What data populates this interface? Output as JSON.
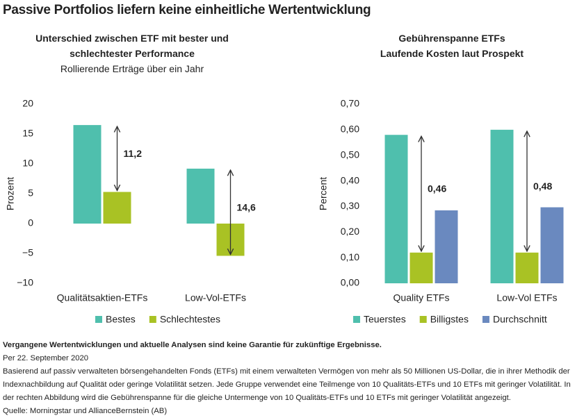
{
  "title": "Passive Portfolios liefern keine einheitliche Wertentwicklung",
  "chart_data": [
    {
      "type": "bar",
      "title": "Unterschied zwischen ETF mit bester und schlechtester Performance",
      "subtitle": "Rollierende Erträge über ein Jahr",
      "ylabel": "Prozent",
      "categories": [
        "Qualitätsaktien-ETFs",
        "Low-Vol-ETFs"
      ],
      "series": [
        {
          "name": "Bestes",
          "color": "#4fbfad",
          "values": [
            16.5,
            9.2
          ]
        },
        {
          "name": "Schlechtestes",
          "color": "#a9c224",
          "values": [
            5.3,
            -5.4
          ]
        }
      ],
      "annotations": [
        {
          "value": 11.2,
          "label": "11,2"
        },
        {
          "value": 14.6,
          "label": "14,6"
        }
      ],
      "ylim": [
        -10,
        20
      ],
      "yticks": [
        {
          "value": -10,
          "label": "−10"
        },
        {
          "value": -5,
          "label": "−5"
        },
        0,
        5,
        10,
        15,
        20
      ],
      "legend": "bottom"
    },
    {
      "type": "bar",
      "title": "Gebührenspanne ETFs",
      "subtitle": "Laufende Kosten laut Prospekt",
      "ylabel": "Percent",
      "categories": [
        "Quality ETFs",
        "Low-Vol ETFs"
      ],
      "series": [
        {
          "name": "Teuerstes",
          "color": "#4fbfad",
          "values": [
            0.58,
            0.6
          ]
        },
        {
          "name": "Billigstes",
          "color": "#a9c224",
          "values": [
            0.12,
            0.12
          ]
        },
        {
          "name": "Durchschnitt",
          "color": "#6a89bf",
          "values": [
            0.285,
            0.297
          ]
        }
      ],
      "annotations": [
        {
          "value": 0.46,
          "label": "0,46"
        },
        {
          "value": 0.48,
          "label": "0,48"
        }
      ],
      "ylim": [
        0,
        0.7
      ],
      "yticks": [
        {
          "value": 0,
          "label": "0,00"
        },
        {
          "value": 0.1,
          "label": "0,10"
        },
        {
          "value": 0.2,
          "label": "0,20"
        },
        {
          "value": 0.3,
          "label": "0,30"
        },
        {
          "value": 0.4,
          "label": "0,40"
        },
        {
          "value": 0.5,
          "label": "0,50"
        },
        {
          "value": 0.6,
          "label": "0,60"
        },
        {
          "value": 0.7,
          "label": "0,70"
        }
      ],
      "legend": "bottom"
    }
  ],
  "footer": {
    "disclaimer": "Vergangene Wertentwicklungen und aktuelle Analysen sind keine Garantie für zukünftige Ergebnisse.",
    "date": "Per 22. September 2020",
    "note": "Basierend auf passiv verwalteten börsengehandelten Fonds (ETFs) mit einem verwalteten Vermögen von mehr als 50 Millionen US-Dollar, die in ihrer Methodik der Indexnachbildung auf Qualität oder geringe Volatilität setzen. Jede Gruppe verwendet eine Teilmenge von 10 Qualitäts-ETFs und 10 ETFs mit geringer Volatilität. In der rechten Abbildung wird die Gebührenspanne für die gleiche Untermenge von 10 Qualitäts-ETFs und 10 ETFs mit geringer Volatilität angezeigt.",
    "source": "Quelle: Morningstar und AllianceBernstein (AB)"
  }
}
